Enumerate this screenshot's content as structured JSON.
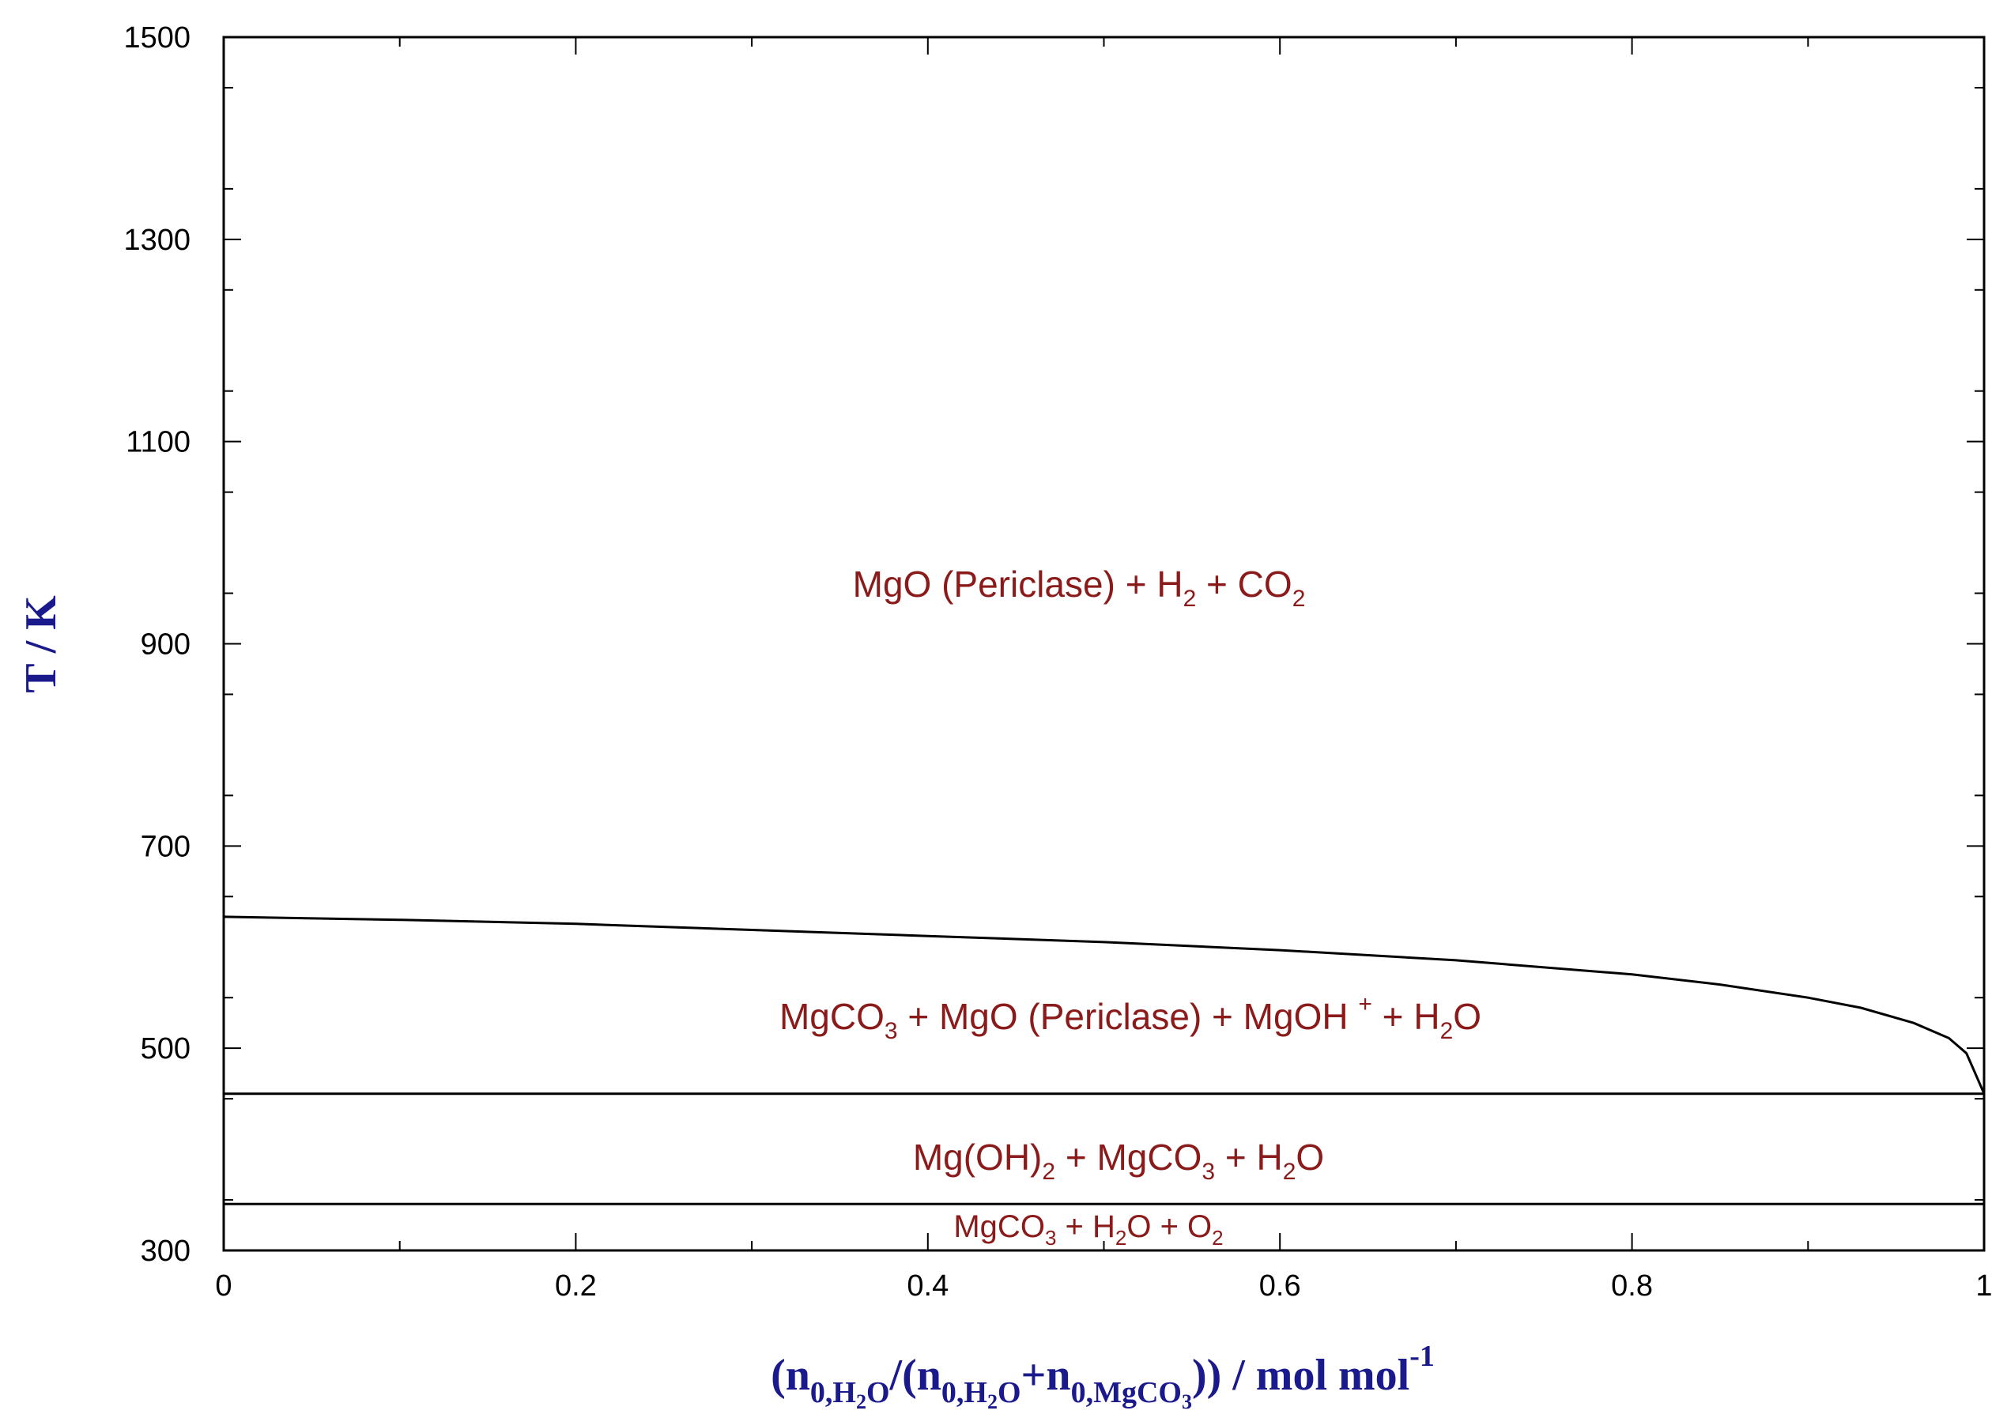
{
  "chart_data": {
    "type": "line",
    "xlabel": "(n0,H2O/(n0,H2O+n0,MgCO3)) / mol mol-1",
    "ylabel": "T / K",
    "xlim": [
      0,
      1
    ],
    "ylim": [
      300,
      1500
    ],
    "x_ticks": [
      "0",
      "0.2",
      "0.4",
      "0.6",
      "0.8",
      "1"
    ],
    "y_ticks": [
      "300",
      "500",
      "700",
      "900",
      "1100",
      "1300",
      "1500"
    ],
    "grid": false,
    "series": [
      {
        "x": [
          0,
          0.1,
          0.2,
          0.3,
          0.4,
          0.5,
          0.6,
          0.7,
          0.8,
          0.85,
          0.9,
          0.93,
          0.96,
          0.98,
          0.99,
          0.995,
          1.0
        ],
        "y": [
          630,
          627,
          623,
          617,
          611,
          605,
          597,
          587,
          573,
          563,
          550,
          540,
          525,
          510,
          495,
          475,
          455
        ]
      },
      {
        "x": [
          0,
          1
        ],
        "y": [
          455,
          455
        ]
      },
      {
        "x": [
          0,
          1
        ],
        "y": [
          346,
          346
        ]
      },
      {
        "x": [
          1,
          1
        ],
        "y": [
          455,
          395
        ]
      }
    ],
    "annotations": [
      {
        "text": "MgO (Periclase) + H2 + CO2",
        "x": 0.48,
        "y": 960
      },
      {
        "text": "MgCO3 + MgO (Periclase) + MgOH+ + H2O",
        "x": 0.51,
        "y": 530
      },
      {
        "text": "Mg(OH)2 + MgCO3 + H2O",
        "x": 0.51,
        "y": 383
      },
      {
        "text": "MgCO3 + H2O + O2",
        "x": 0.51,
        "y": 315
      }
    ]
  },
  "colors": {
    "region_label": "#8b1a1a",
    "axis_title": "#1a1a8c",
    "line": "#000000"
  }
}
